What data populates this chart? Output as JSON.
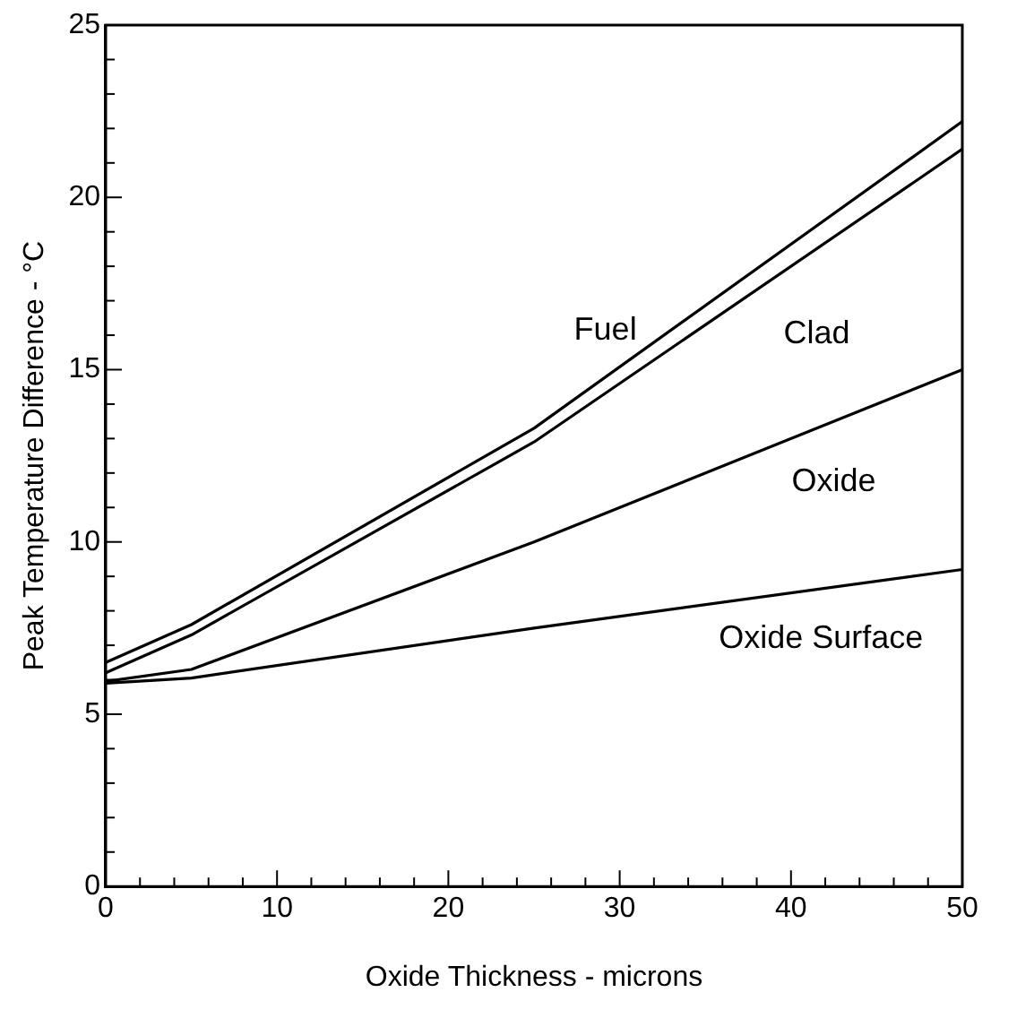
{
  "chart_data": {
    "type": "line",
    "xlabel": "Oxide Thickness - microns",
    "ylabel": "Peak Temperature Difference - °C",
    "x": [
      0,
      5,
      25,
      50
    ],
    "series": [
      {
        "name": "Fuel",
        "color": "#000000",
        "values": [
          6.5,
          7.6,
          13.3,
          22.2
        ]
      },
      {
        "name": "Clad",
        "color": "#000000",
        "values": [
          6.2,
          7.3,
          12.9,
          21.4
        ]
      },
      {
        "name": "Oxide",
        "color": "#000000",
        "values": [
          5.95,
          6.3,
          10,
          15
        ]
      },
      {
        "name": "Oxide Surface",
        "color": "#000000",
        "values": [
          5.9,
          6.05,
          7.5,
          9.2
        ]
      }
    ],
    "xlim": [
      0,
      50
    ],
    "xticks": [
      0,
      {
        "value": 2,
        "label": null
      },
      {
        "value": 4,
        "label": null
      },
      {
        "value": 6,
        "label": null
      },
      {
        "value": 8,
        "label": null
      },
      10,
      {
        "value": 12,
        "label": null
      },
      {
        "value": 14,
        "label": null
      },
      {
        "value": 16,
        "label": null
      },
      {
        "value": 18,
        "label": null
      },
      20,
      {
        "value": 22,
        "label": null
      },
      {
        "value": 24,
        "label": null
      },
      {
        "value": 26,
        "label": null
      },
      {
        "value": 28,
        "label": null
      },
      30,
      {
        "value": 32,
        "label": null
      },
      {
        "value": 34,
        "label": null
      },
      {
        "value": 36,
        "label": null
      },
      {
        "value": 38,
        "label": null
      },
      40,
      {
        "value": 42,
        "label": null
      },
      {
        "value": 44,
        "label": null
      },
      {
        "value": 46,
        "label": null
      },
      {
        "value": 48,
        "label": null
      },
      50
    ],
    "ylim": [
      0,
      25
    ],
    "yticks": [
      0,
      {
        "value": 1,
        "label": null
      },
      {
        "value": 2,
        "label": null
      },
      {
        "value": 3,
        "label": null
      },
      {
        "value": 4,
        "label": null
      },
      5,
      {
        "value": 6,
        "label": null
      },
      {
        "value": 7,
        "label": null
      },
      {
        "value": 8,
        "label": null
      },
      {
        "value": 9,
        "label": null
      },
      10,
      {
        "value": 11,
        "label": null
      },
      {
        "value": 12,
        "label": null
      },
      {
        "value": 13,
        "label": null
      },
      {
        "value": 14,
        "label": null
      },
      15,
      {
        "value": 16,
        "label": null
      },
      {
        "value": 17,
        "label": null
      },
      {
        "value": 18,
        "label": null
      },
      {
        "value": 19,
        "label": null
      },
      20,
      {
        "value": 21,
        "label": null
      },
      {
        "value": 22,
        "label": null
      },
      {
        "value": 23,
        "label": null
      },
      {
        "value": 24,
        "label": null
      },
      25
    ],
    "grid": false,
    "legend": false,
    "marker": "none",
    "line_style": "solid"
  }
}
